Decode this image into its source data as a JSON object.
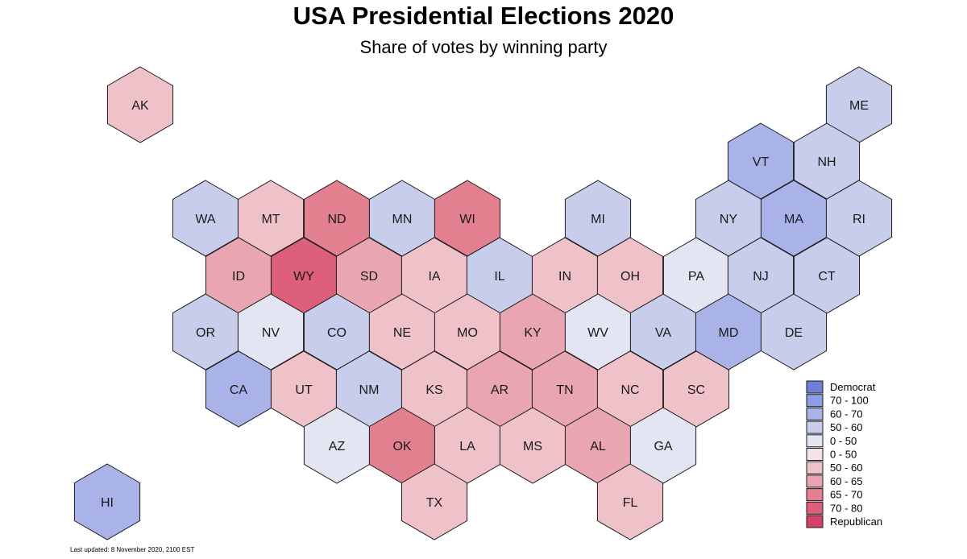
{
  "title": "USA Presidential Elections 2020",
  "subtitle": "Share of votes by winning party",
  "footnote": "Last updated: 8 November 2020, 2100 EST",
  "chart_data": {
    "type": "hexbin-map",
    "title": "USA Presidential Elections 2020",
    "subtitle": "Share of votes by winning party",
    "legend": {
      "placement": "bottom-right",
      "entries": [
        {
          "label": "Democrat",
          "color": "#6f80d4"
        },
        {
          "label": "70 - 100",
          "color": "#8f9ee2"
        },
        {
          "label": "60 - 70",
          "color": "#a9b3e8"
        },
        {
          "label": "50 - 60",
          "color": "#c8cdec"
        },
        {
          "label": "0 - 50",
          "color": "#e3e5f2"
        },
        {
          "label": "0 - 50",
          "color": "#f3e3e6"
        },
        {
          "label": "50 - 60",
          "color": "#efc2ca"
        },
        {
          "label": "60 - 65",
          "color": "#e9a6b2"
        },
        {
          "label": "65 - 70",
          "color": "#e3808f"
        },
        {
          "label": "70 - 80",
          "color": "#de5f7a"
        },
        {
          "label": "Republican",
          "color": "#d6416a"
        }
      ]
    },
    "states": [
      {
        "abbr": "AK",
        "party": "Republican",
        "share_band": "50 - 60"
      },
      {
        "abbr": "ME",
        "party": "Democrat",
        "share_band": "50 - 60"
      },
      {
        "abbr": "VT",
        "party": "Democrat",
        "share_band": "60 - 70"
      },
      {
        "abbr": "NH",
        "party": "Democrat",
        "share_band": "50 - 60"
      },
      {
        "abbr": "WA",
        "party": "Democrat",
        "share_band": "50 - 60"
      },
      {
        "abbr": "MT",
        "party": "Republican",
        "share_band": "50 - 60"
      },
      {
        "abbr": "ND",
        "party": "Republican",
        "share_band": "65 - 70"
      },
      {
        "abbr": "MN",
        "party": "Democrat",
        "share_band": "50 - 60"
      },
      {
        "abbr": "WI",
        "party": "Republican",
        "share_band": "65 - 70"
      },
      {
        "abbr": "MI",
        "party": "Democrat",
        "share_band": "50 - 60"
      },
      {
        "abbr": "NY",
        "party": "Democrat",
        "share_band": "50 - 60"
      },
      {
        "abbr": "MA",
        "party": "Democrat",
        "share_band": "60 - 70"
      },
      {
        "abbr": "RI",
        "party": "Democrat",
        "share_band": "50 - 60"
      },
      {
        "abbr": "ID",
        "party": "Republican",
        "share_band": "60 - 65"
      },
      {
        "abbr": "WY",
        "party": "Republican",
        "share_band": "70 - 80"
      },
      {
        "abbr": "SD",
        "party": "Republican",
        "share_band": "60 - 65"
      },
      {
        "abbr": "IA",
        "party": "Republican",
        "share_band": "50 - 60"
      },
      {
        "abbr": "IL",
        "party": "Democrat",
        "share_band": "50 - 60"
      },
      {
        "abbr": "IN",
        "party": "Republican",
        "share_band": "50 - 60"
      },
      {
        "abbr": "OH",
        "party": "Republican",
        "share_band": "50 - 60"
      },
      {
        "abbr": "PA",
        "party": "Democrat",
        "share_band": "0 - 50"
      },
      {
        "abbr": "NJ",
        "party": "Democrat",
        "share_band": "50 - 60"
      },
      {
        "abbr": "CT",
        "party": "Democrat",
        "share_band": "50 - 60"
      },
      {
        "abbr": "OR",
        "party": "Democrat",
        "share_band": "50 - 60"
      },
      {
        "abbr": "NV",
        "party": "Democrat",
        "share_band": "0 - 50"
      },
      {
        "abbr": "CO",
        "party": "Democrat",
        "share_band": "50 - 60"
      },
      {
        "abbr": "NE",
        "party": "Republican",
        "share_band": "50 - 60"
      },
      {
        "abbr": "MO",
        "party": "Republican",
        "share_band": "50 - 60"
      },
      {
        "abbr": "KY",
        "party": "Republican",
        "share_band": "60 - 65"
      },
      {
        "abbr": "WV",
        "party": "Democrat",
        "share_band": "0 - 50"
      },
      {
        "abbr": "VA",
        "party": "Democrat",
        "share_band": "50 - 60"
      },
      {
        "abbr": "MD",
        "party": "Democrat",
        "share_band": "60 - 70"
      },
      {
        "abbr": "DE",
        "party": "Democrat",
        "share_band": "50 - 60"
      },
      {
        "abbr": "CA",
        "party": "Democrat",
        "share_band": "60 - 70"
      },
      {
        "abbr": "UT",
        "party": "Republican",
        "share_band": "50 - 60"
      },
      {
        "abbr": "NM",
        "party": "Democrat",
        "share_band": "50 - 60"
      },
      {
        "abbr": "KS",
        "party": "Republican",
        "share_band": "50 - 60"
      },
      {
        "abbr": "AR",
        "party": "Republican",
        "share_band": "60 - 65"
      },
      {
        "abbr": "TN",
        "party": "Republican",
        "share_band": "60 - 65"
      },
      {
        "abbr": "NC",
        "party": "Republican",
        "share_band": "50 - 60"
      },
      {
        "abbr": "SC",
        "party": "Republican",
        "share_band": "50 - 60"
      },
      {
        "abbr": "AZ",
        "party": "Democrat",
        "share_band": "0 - 50"
      },
      {
        "abbr": "OK",
        "party": "Republican",
        "share_band": "65 - 70"
      },
      {
        "abbr": "LA",
        "party": "Republican",
        "share_band": "50 - 60"
      },
      {
        "abbr": "MS",
        "party": "Republican",
        "share_band": "50 - 60"
      },
      {
        "abbr": "AL",
        "party": "Republican",
        "share_band": "60 - 65"
      },
      {
        "abbr": "GA",
        "party": "Democrat",
        "share_band": "0 - 50"
      },
      {
        "abbr": "HI",
        "party": "Democrat",
        "share_band": "60 - 70"
      },
      {
        "abbr": "TX",
        "party": "Republican",
        "share_band": "50 - 60"
      },
      {
        "abbr": "FL",
        "party": "Republican",
        "share_band": "50 - 60"
      }
    ]
  }
}
